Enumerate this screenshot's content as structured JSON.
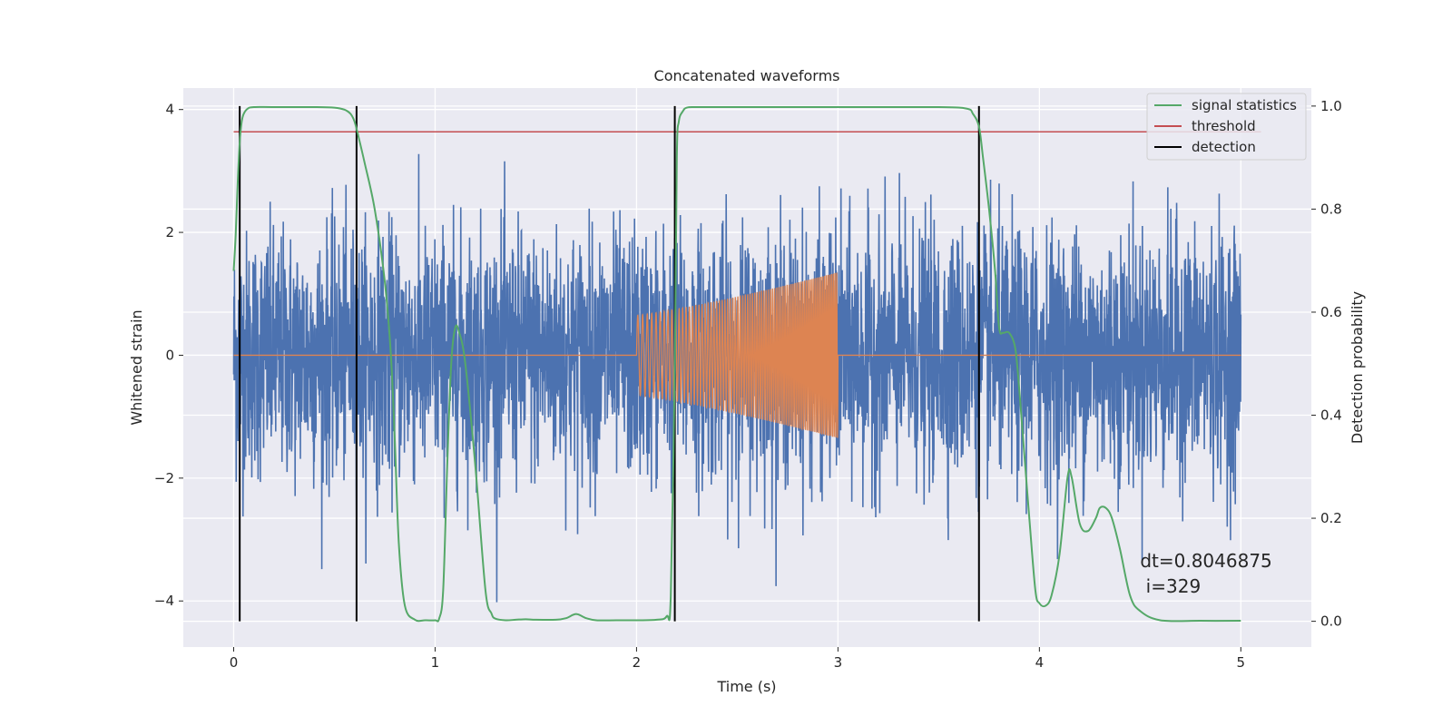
{
  "chart_data": {
    "type": "line",
    "title": "Concatenated waveforms",
    "xlabel": "Time (s)",
    "ylabel": "Whitened strain",
    "y2label": "Detection probability",
    "xlim": [
      -0.25,
      5.35
    ],
    "ylim": [
      -4.75,
      4.35
    ],
    "y2lim": [
      -0.05,
      1.035
    ],
    "xticks": [
      0,
      1,
      2,
      3,
      4,
      5
    ],
    "xtick_labels": [
      "0",
      "1",
      "2",
      "3",
      "4",
      "5"
    ],
    "yticks": [
      4,
      2,
      0,
      -2,
      -4
    ],
    "ytick_labels": [
      "4",
      "2",
      "0",
      "−2",
      "−4"
    ],
    "y2ticks": [
      1.0,
      0.8,
      0.6,
      0.4,
      0.2,
      0.0
    ],
    "y2tick_labels": [
      "1.0",
      "0.8",
      "0.6",
      "0.4",
      "0.2",
      "0.0"
    ],
    "grid": true,
    "legend_position": "top-right",
    "legend": [
      {
        "label": "signal statistics",
        "color": "#55a868"
      },
      {
        "label": "threshold",
        "color": "#c44e52"
      },
      {
        "label": "detection",
        "color": "#000000"
      }
    ],
    "colors": {
      "noise": "#4c72b0",
      "waveform": "#dd8452",
      "statistic": "#55a868",
      "threshold": "#c44e52",
      "detection": "#000000",
      "axes_bg": "#eaeaf2"
    },
    "threshold": 0.95,
    "threshold_x_range": [
      0,
      5.1
    ],
    "detections": [
      0.03,
      0.61,
      2.19,
      3.7
    ],
    "noise_series": {
      "x_range": [
        0,
        5
      ],
      "amplitude_std": 1.0
    },
    "waveform_series": {
      "x_range": [
        2,
        3
      ],
      "start_amplitude": 0.65,
      "end_amplitude": 1.35
    },
    "statistic_series": {
      "x": [
        0,
        0.01,
        0.02,
        0.03,
        0.04,
        0.05,
        0.07,
        0.1,
        0.2,
        0.4,
        0.5,
        0.55,
        0.58,
        0.6,
        0.62,
        0.65,
        0.7,
        0.75,
        0.78,
        0.8,
        0.82,
        0.85,
        0.9,
        0.95,
        1.0,
        1.02,
        1.04,
        1.06,
        1.08,
        1.1,
        1.12,
        1.15,
        1.2,
        1.25,
        1.28,
        1.3,
        1.35,
        1.4,
        1.45,
        1.5,
        1.6,
        1.65,
        1.7,
        1.75,
        1.8,
        1.9,
        2.0,
        2.1,
        2.15,
        2.17,
        2.19,
        2.2,
        2.21,
        2.23,
        2.25,
        2.3,
        2.5,
        3.0,
        3.5,
        3.64,
        3.67,
        3.7,
        3.72,
        3.75,
        3.78,
        3.8,
        3.82,
        3.85,
        3.88,
        3.9,
        3.92,
        3.95,
        3.98,
        4.0,
        4.03,
        4.06,
        4.1,
        4.14,
        4.16,
        4.2,
        4.24,
        4.28,
        4.3,
        4.33,
        4.36,
        4.4,
        4.45,
        4.5,
        4.6,
        4.8,
        5.0
      ],
      "y": [
        0.68,
        0.75,
        0.85,
        0.93,
        0.97,
        0.985,
        0.995,
        0.998,
        0.998,
        0.998,
        0.997,
        0.993,
        0.985,
        0.97,
        0.94,
        0.89,
        0.8,
        0.66,
        0.52,
        0.35,
        0.15,
        0.03,
        0.003,
        0.002,
        0.002,
        0.005,
        0.06,
        0.3,
        0.5,
        0.57,
        0.56,
        0.5,
        0.3,
        0.06,
        0.015,
        0.005,
        0.002,
        0.003,
        0.004,
        0.003,
        0.003,
        0.006,
        0.014,
        0.006,
        0.002,
        0.002,
        0.002,
        0.003,
        0.01,
        0.05,
        0.5,
        0.9,
        0.97,
        0.99,
        0.997,
        0.998,
        0.998,
        0.998,
        0.998,
        0.995,
        0.985,
        0.96,
        0.9,
        0.8,
        0.68,
        0.57,
        0.56,
        0.56,
        0.53,
        0.45,
        0.35,
        0.2,
        0.06,
        0.035,
        0.03,
        0.05,
        0.13,
        0.28,
        0.28,
        0.19,
        0.175,
        0.2,
        0.22,
        0.22,
        0.2,
        0.14,
        0.05,
        0.02,
        0.002,
        0.001,
        0.001
      ]
    },
    "annotation": "dt=0.8046875\n i=329",
    "annotation_x": 4.5,
    "annotation_y": -3.45
  }
}
